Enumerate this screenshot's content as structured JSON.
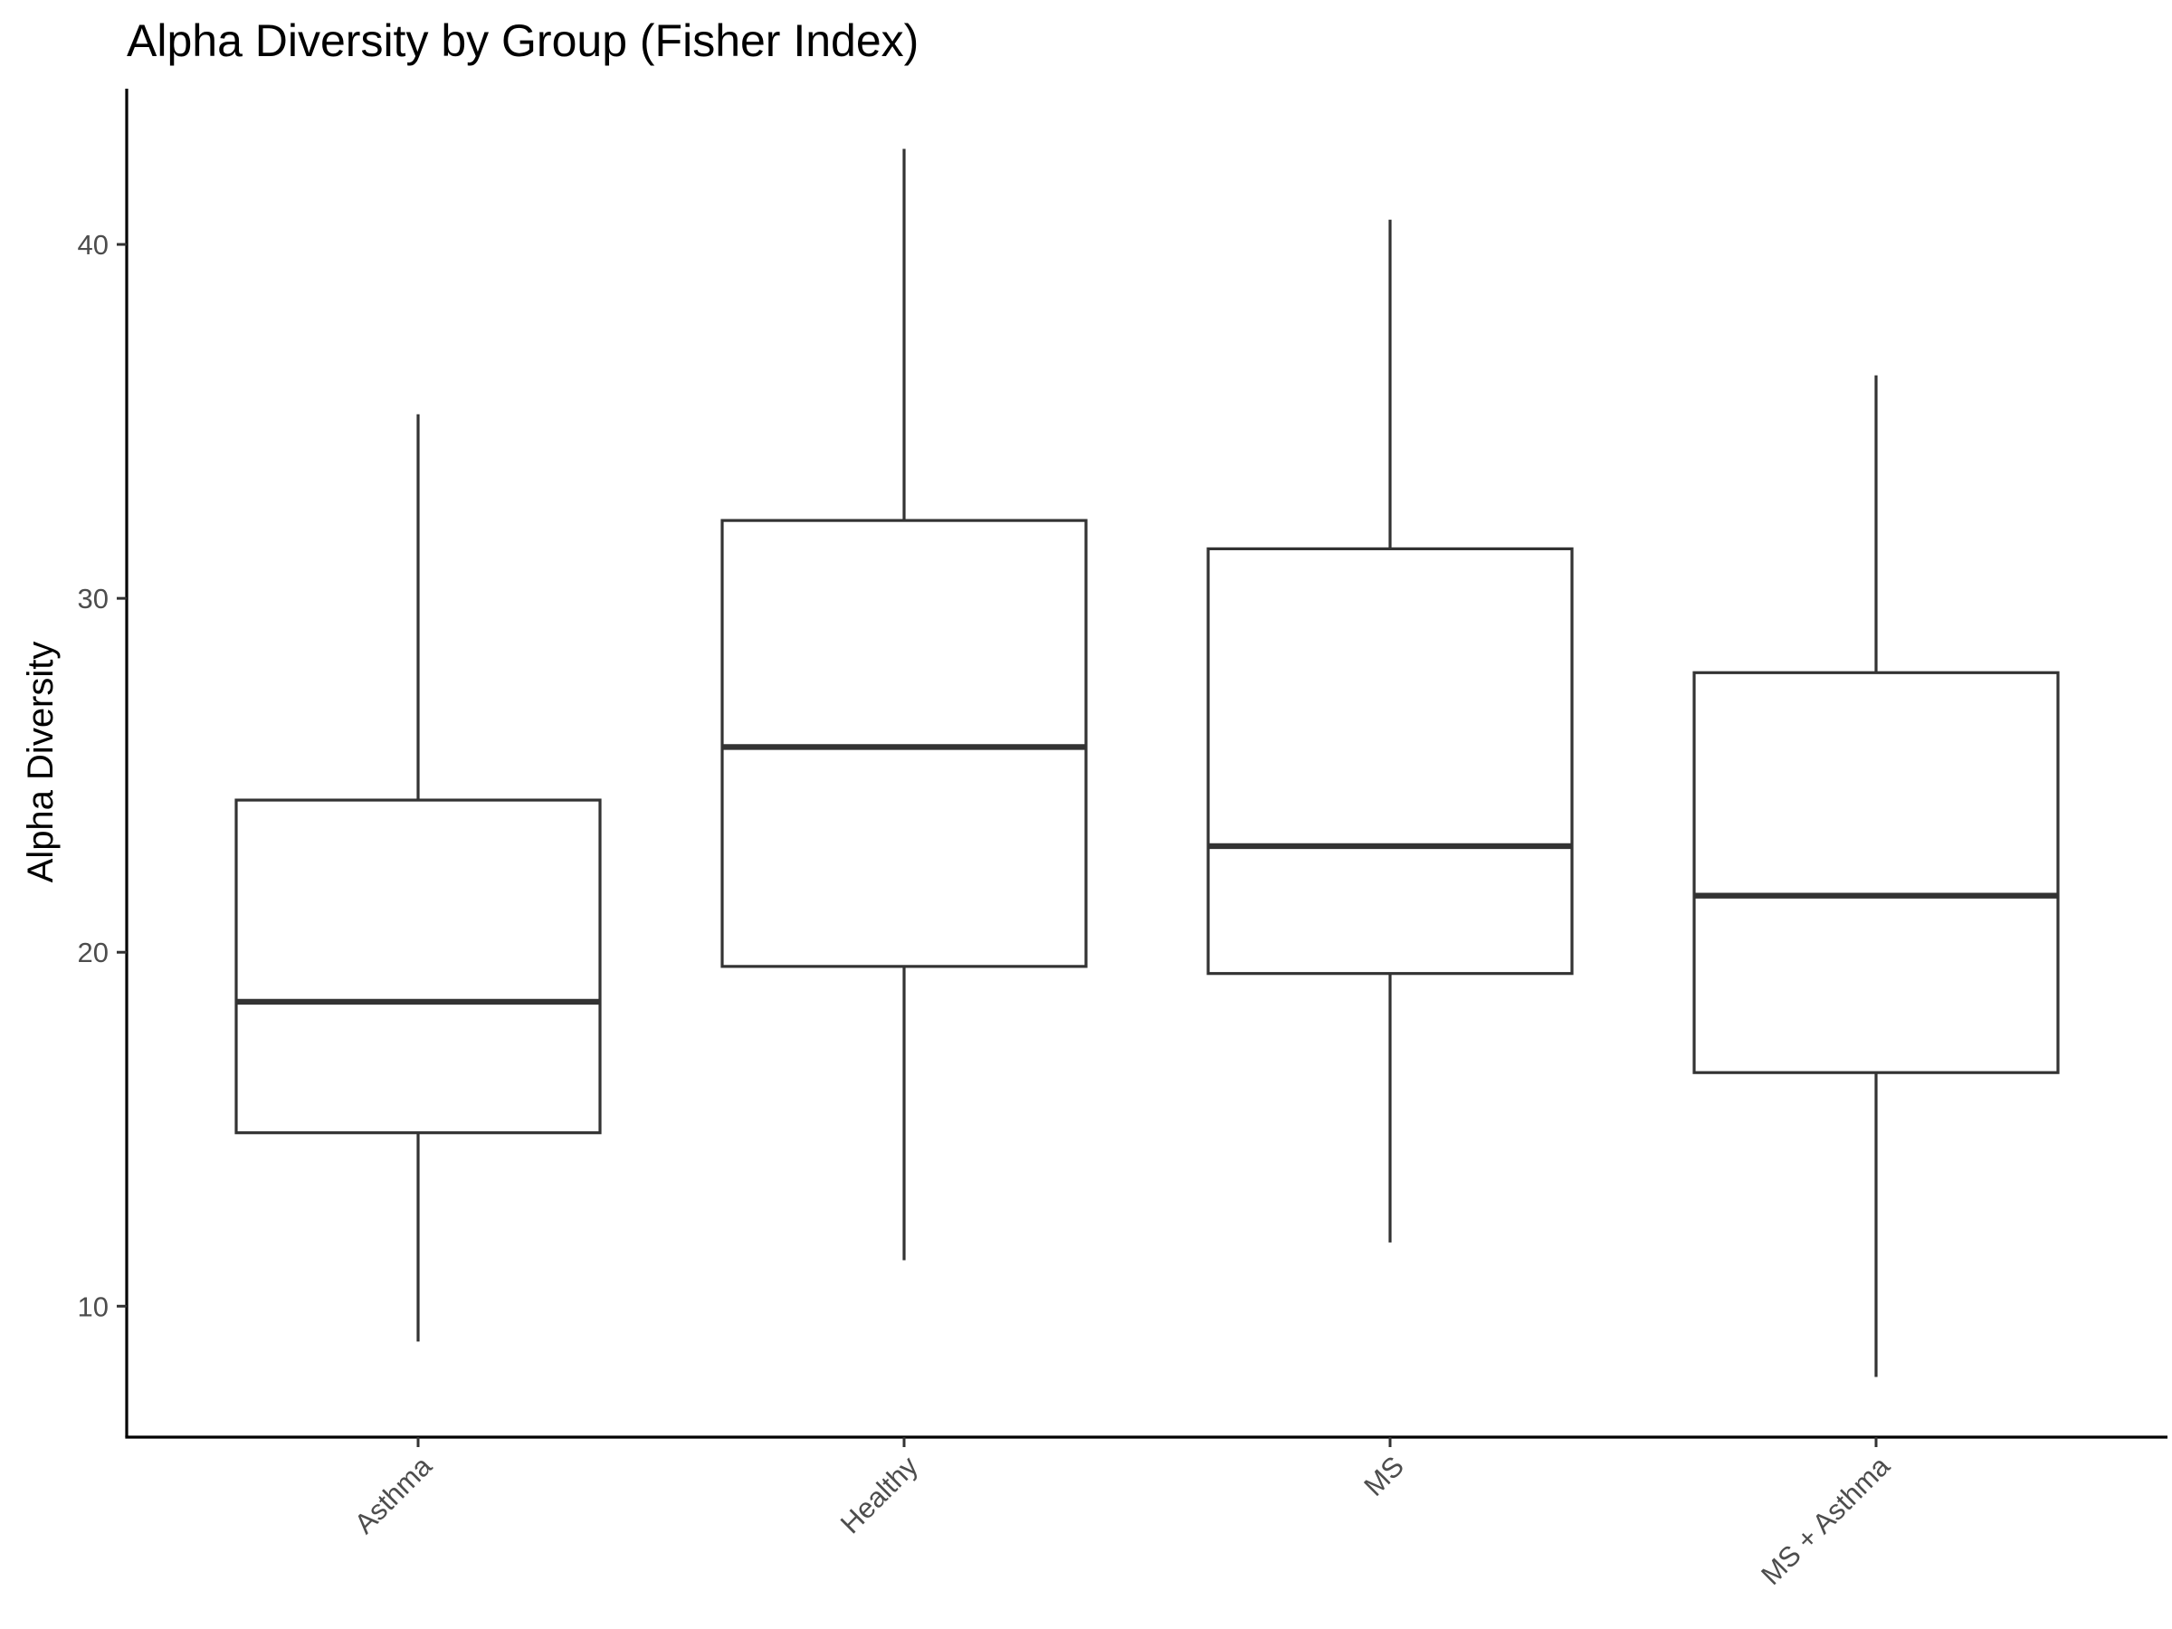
{
  "chart_data": {
    "type": "boxplot",
    "title": "Alpha Diversity by Group (Fisher Index)",
    "xlabel": "",
    "ylabel": "Alpha Diversity",
    "ylim": [
      6.3,
      44.4
    ],
    "yticks": [
      10,
      20,
      30,
      40
    ],
    "grid": false,
    "legend": "none",
    "categories": [
      "Asthma",
      "Healthy",
      "MS",
      "MS + Asthma"
    ],
    "boxes": [
      {
        "category": "Asthma",
        "min": 9.0,
        "q1": 14.9,
        "median": 18.6,
        "q3": 24.3,
        "max": 35.2
      },
      {
        "category": "Healthy",
        "min": 11.3,
        "q1": 19.6,
        "median": 25.8,
        "q3": 32.2,
        "max": 42.7
      },
      {
        "category": "MS",
        "min": 11.8,
        "q1": 19.4,
        "median": 23.0,
        "q3": 31.4,
        "max": 40.7
      },
      {
        "category": "MS + Asthma",
        "min": 8.0,
        "q1": 16.6,
        "median": 21.6,
        "q3": 27.9,
        "max": 36.3
      }
    ],
    "colors": {
      "box_stroke": "#333333",
      "box_fill": "#ffffff",
      "axis": "#000000",
      "tick_text": "#4d4d4d"
    }
  }
}
